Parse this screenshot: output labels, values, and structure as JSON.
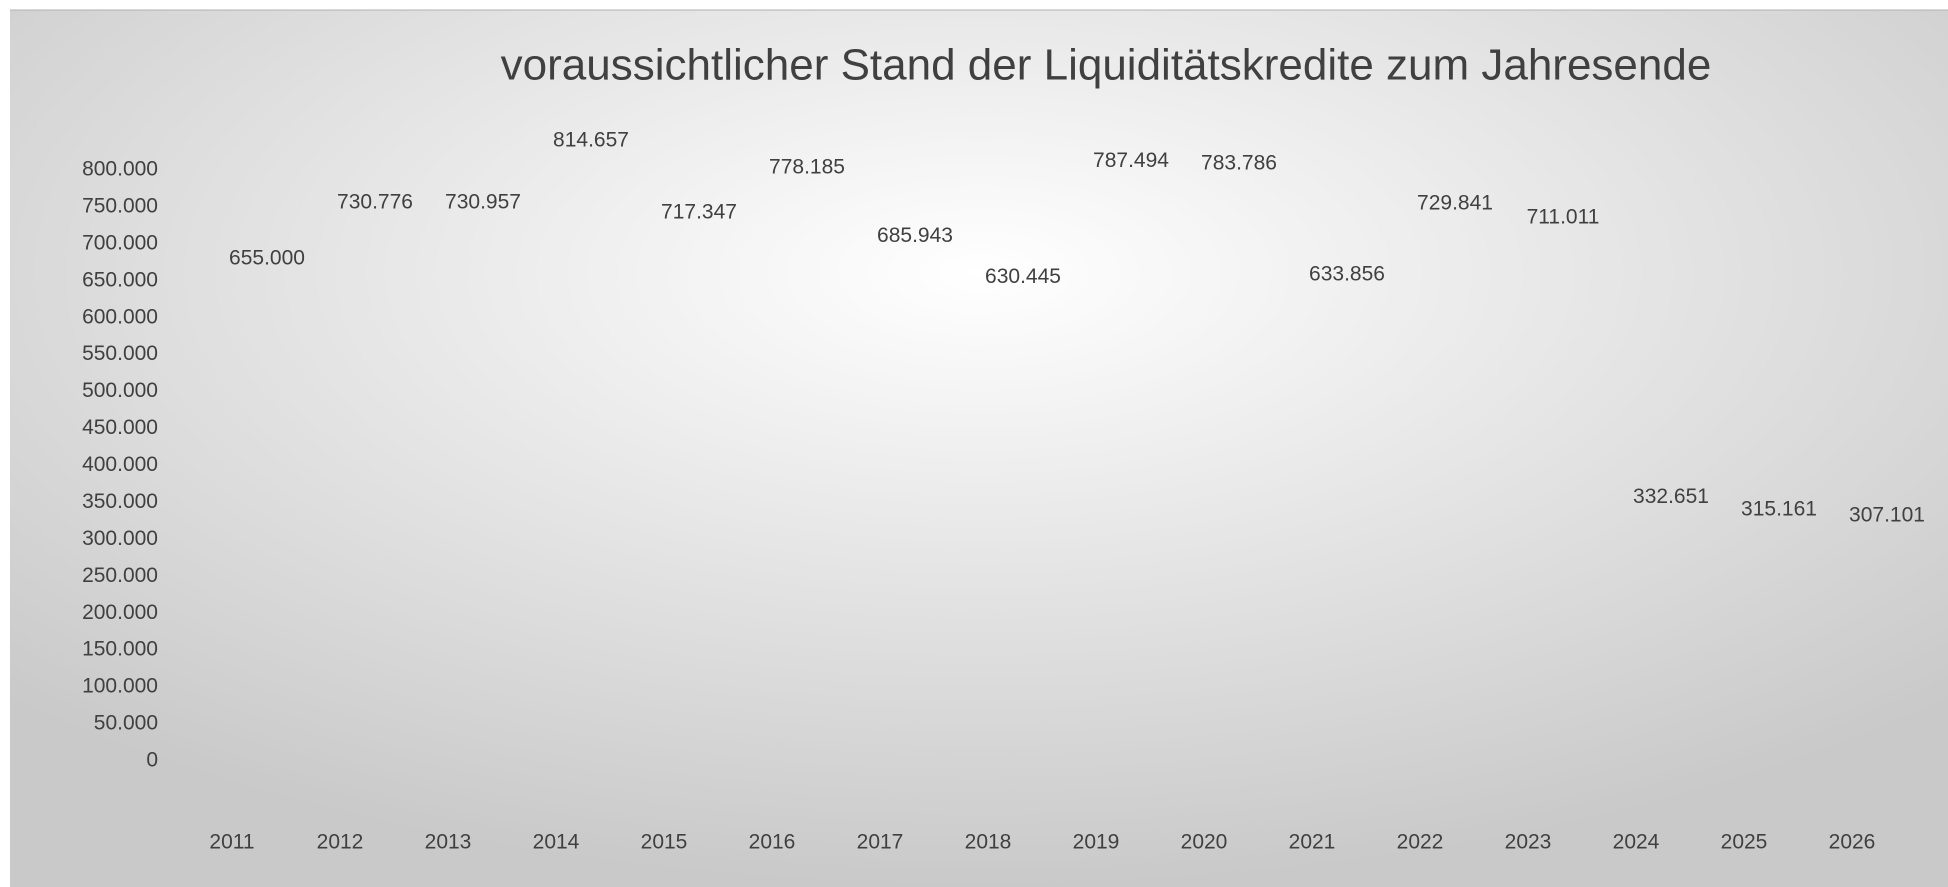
{
  "chart_data": {
    "type": "bar",
    "title": "voraussichtlicher Stand der Liquiditätskredite zum Jahresende",
    "categories": [
      "2011",
      "2012",
      "2013",
      "2014",
      "2015",
      "2016",
      "2017",
      "2018",
      "2019",
      "2020",
      "2021",
      "2022",
      "2023",
      "2024",
      "2025",
      "2026"
    ],
    "values": [
      655000,
      730776,
      730957,
      814657,
      717347,
      778185,
      685943,
      630445,
      787494,
      783786,
      633856,
      729841,
      711011,
      332651,
      315161,
      307101
    ],
    "value_labels": [
      "655.000",
      "730.776",
      "730.957",
      "814.657",
      "717.347",
      "778.185",
      "685.943",
      "630.445",
      "787.494",
      "783.786",
      "633.856",
      "729.841",
      "711.011",
      "332.651",
      "315.161",
      "307.101"
    ],
    "ylim": [
      0,
      800000
    ],
    "yticks": [
      0,
      {
        "value": 50000,
        "label": "50.000"
      },
      {
        "value": 100000,
        "label": "100.000"
      },
      {
        "value": 150000,
        "label": "150.000"
      },
      {
        "value": 200000,
        "label": "200.000"
      },
      {
        "value": 250000,
        "label": "250.000"
      },
      {
        "value": 300000,
        "label": "300.000"
      },
      {
        "value": 350000,
        "label": "350.000"
      },
      {
        "value": 400000,
        "label": "400.000"
      },
      {
        "value": 450000,
        "label": "450.000"
      },
      {
        "value": 500000,
        "label": "500.000"
      },
      {
        "value": 550000,
        "label": "550.000"
      },
      {
        "value": 600000,
        "label": "600.000"
      },
      {
        "value": 650000,
        "label": "650.000"
      },
      {
        "value": 700000,
        "label": "700.000"
      },
      {
        "value": 750000,
        "label": "750.000"
      },
      {
        "value": 800000,
        "label": "800.000"
      }
    ]
  }
}
